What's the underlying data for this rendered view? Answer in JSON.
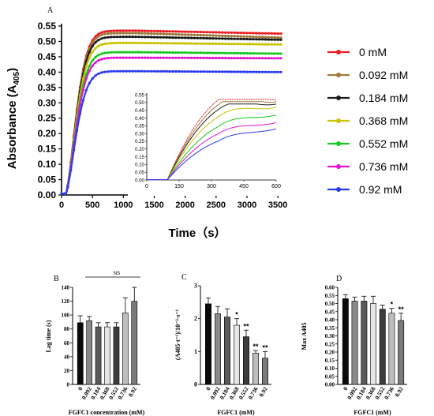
{
  "chart_data": [
    {
      "panel": "A",
      "type": "line",
      "xlabel": "Time（s）",
      "ylabel": "Absorbance (A405)",
      "ylabel_main": "Absorbance (A",
      "ylabel_sub": "405",
      "ylabel_close": ")",
      "xlim": [
        0,
        3600
      ],
      "ylim": [
        0,
        0.55
      ],
      "xticks": [
        0,
        500,
        1000,
        1500,
        2000,
        2500,
        3000,
        3500
      ],
      "yticks": [
        "0.00",
        "0.05",
        "0.10",
        "0.15",
        "0.20",
        "0.25",
        "0.30",
        "0.35",
        "0.40",
        "0.45",
        "0.50",
        "0.55"
      ],
      "series": [
        {
          "name": "0 mM",
          "color": "#ee1c24",
          "plateau": 0.525,
          "peak": 0.535
        },
        {
          "name": "0.092 mM",
          "color": "#9c7a3c",
          "plateau": 0.512,
          "peak": 0.527
        },
        {
          "name": "0.184 mM",
          "color": "#1a1a1a",
          "plateau": 0.505,
          "peak": 0.515
        },
        {
          "name": "0.368 mM",
          "color": "#c8c200",
          "plateau": 0.49,
          "peak": 0.495
        },
        {
          "name": "0.552 mM",
          "color": "#14c81e",
          "plateau": 0.46,
          "peak": 0.465
        },
        {
          "name": "0.736 mM",
          "color": "#e414d6",
          "plateau": 0.445,
          "peak": 0.447
        },
        {
          "name": "0.92 mM",
          "color": "#2a3bef",
          "plateau": 0.4,
          "peak": 0.403
        }
      ],
      "inset": {
        "xlim": [
          0,
          600
        ],
        "ylim": [
          0,
          0.55
        ],
        "xticks": [
          0,
          150,
          300,
          450,
          600
        ],
        "yticks": [
          "0.00",
          "0.05",
          "0.10",
          "0.15",
          "0.20",
          "0.25",
          "0.30",
          "0.35",
          "0.40",
          "0.45",
          "0.50",
          "0.55"
        ],
        "series_end": [
          {
            "color": "#ee1c24",
            "y": 0.52
          },
          {
            "color": "#9c7a3c",
            "y": 0.505
          },
          {
            "color": "#1a1a1a",
            "y": 0.49
          },
          {
            "color": "#c8c200",
            "y": 0.47
          },
          {
            "color": "#14c81e",
            "y": 0.42
          },
          {
            "color": "#e414d6",
            "y": 0.37
          },
          {
            "color": "#2a3bef",
            "y": 0.33
          }
        ]
      }
    },
    {
      "panel": "B",
      "type": "bar",
      "ylabel": "Lag time (s)",
      "xlabel": "FGFC1 concentration (mM)",
      "categories": [
        "0",
        "0.092",
        "0.184",
        "0.368",
        "0.552",
        "0.736",
        "0.92"
      ],
      "values": [
        89,
        92,
        83,
        83,
        83,
        103,
        120
      ],
      "errors": [
        10,
        6,
        6,
        6,
        6,
        22,
        20
      ],
      "ylim": [
        0,
        140
      ],
      "yticks": [
        "0",
        "20",
        "40",
        "60",
        "80",
        "100",
        "120",
        "140"
      ],
      "bar_colors": [
        "#0a0a0a",
        "#8a8a8a",
        "#5a5a5a",
        "#e6e6e6",
        "#3c3c3c",
        "#bdbdbd",
        "#7a7a7a"
      ],
      "annotation": "NS"
    },
    {
      "panel": "C",
      "type": "bar",
      "ylabel": "(A405·t⁻¹)/10⁻³·s⁻¹",
      "xlabel": "FGFC1 (mM)",
      "categories": [
        "0",
        "0.092",
        "0.184",
        "0.368",
        "0.552",
        "0.736",
        "0.92"
      ],
      "values": [
        2.45,
        2.15,
        2.05,
        1.8,
        1.45,
        0.95,
        0.8
      ],
      "errors": [
        0.18,
        0.22,
        0.25,
        0.2,
        0.2,
        0.08,
        0.2
      ],
      "ylim": [
        0,
        3
      ],
      "yticks": [
        "0",
        "1",
        "2",
        "3"
      ],
      "bar_colors": [
        "#0a0a0a",
        "#8a8a8a",
        "#5a5a5a",
        "#e6e6e6",
        "#3c3c3c",
        "#bdbdbd",
        "#7a7a7a"
      ],
      "marks": [
        "",
        "",
        "",
        "*",
        "**",
        "**",
        "**"
      ]
    },
    {
      "panel": "D",
      "type": "bar",
      "ylabel": "Max A405",
      "xlabel": "FGFC1 (mM)",
      "categories": [
        "0",
        "0.092",
        "0.184",
        "0.368",
        "0.552",
        "0.736",
        "0.92"
      ],
      "values": [
        0.53,
        0.515,
        0.515,
        0.5,
        0.465,
        0.44,
        0.395
      ],
      "errors": [
        0.025,
        0.025,
        0.03,
        0.045,
        0.025,
        0.03,
        0.045
      ],
      "ylim": [
        0,
        0.6
      ],
      "yticks": [
        "0.00",
        "0.05",
        "0.10",
        "0.15",
        "0.20",
        "0.25",
        "0.30",
        "0.35",
        "0.40",
        "0.45",
        "0.50",
        "0.55",
        "0.60"
      ],
      "bar_colors": [
        "#0a0a0a",
        "#8a8a8a",
        "#5a5a5a",
        "#e6e6e6",
        "#3c3c3c",
        "#bdbdbd",
        "#7a7a7a"
      ],
      "marks": [
        "",
        "",
        "",
        "",
        "",
        "*",
        "**"
      ]
    }
  ]
}
